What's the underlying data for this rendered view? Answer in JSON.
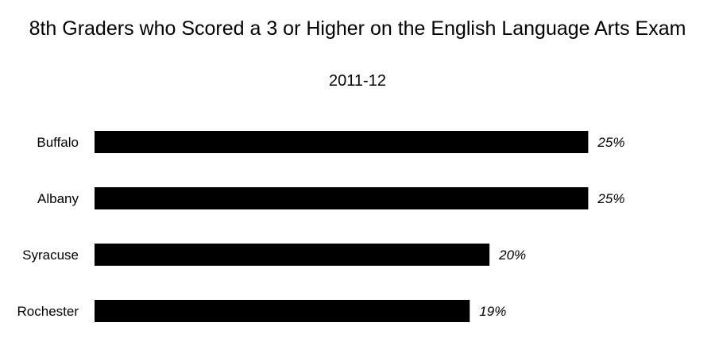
{
  "chart_data": {
    "type": "bar",
    "orientation": "horizontal",
    "title": "8th Graders who Scored a 3 or Higher on the English Language Arts Exam",
    "subtitle": "2011-12",
    "categories": [
      "Buffalo",
      "Albany",
      "Syracuse",
      "Rochester"
    ],
    "values": [
      25,
      25,
      20,
      19
    ],
    "value_labels": [
      "25%",
      "25%",
      "20%",
      "19%"
    ],
    "bar_color": "#000000",
    "xlim": [
      0,
      28
    ],
    "grid": false,
    "legend": "none"
  }
}
